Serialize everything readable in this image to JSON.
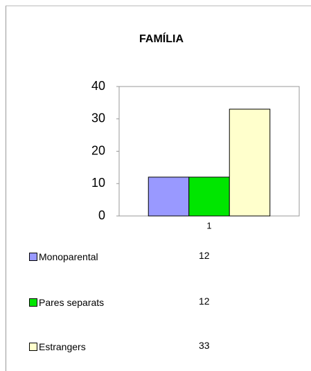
{
  "chart_data": {
    "type": "bar",
    "title": "FAMÍLIA",
    "categories": [
      "1"
    ],
    "series": [
      {
        "name": "Monoparental",
        "color": "#9999ff",
        "values": [
          12
        ]
      },
      {
        "name": "Pares separats",
        "color": "#00e600",
        "values": [
          12
        ]
      },
      {
        "name": "Estrangers",
        "color": "#ffffcc",
        "values": [
          33
        ]
      }
    ],
    "ylim": [
      0,
      40
    ],
    "yticks": [
      0,
      10,
      20,
      30,
      40
    ],
    "grid": false
  }
}
